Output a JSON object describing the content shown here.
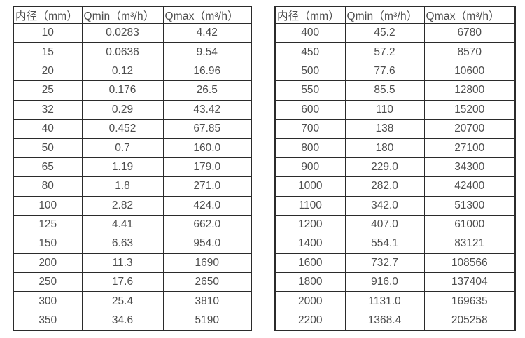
{
  "tables": [
    {
      "name": "small-diameter-flow-ranges",
      "headers": [
        "内径（mm）",
        "Qmin（m³/h）",
        "Qmax（m³/h）"
      ],
      "rows": [
        [
          "10",
          "0.0283",
          "4.42"
        ],
        [
          "15",
          "0.0636",
          "9.54"
        ],
        [
          "20",
          "0.12",
          "16.96"
        ],
        [
          "25",
          "0.176",
          "26.5"
        ],
        [
          "32",
          "0.29",
          "43.42"
        ],
        [
          "40",
          "0.452",
          "67.85"
        ],
        [
          "50",
          "0.7",
          "160.0"
        ],
        [
          "65",
          "1.19",
          "179.0"
        ],
        [
          "80",
          "1.8",
          "271.0"
        ],
        [
          "100",
          "2.82",
          "424.0"
        ],
        [
          "125",
          "4.41",
          "662.0"
        ],
        [
          "150",
          "6.63",
          "954.0"
        ],
        [
          "200",
          "11.3",
          "1690"
        ],
        [
          "250",
          "17.6",
          "2650"
        ],
        [
          "300",
          "25.4",
          "3810"
        ],
        [
          "350",
          "34.6",
          "5190"
        ]
      ]
    },
    {
      "name": "large-diameter-flow-ranges",
      "headers": [
        "内径（mm）",
        "Qmin（m³/h）",
        "Qmax（m³/h）"
      ],
      "rows": [
        [
          "400",
          "45.2",
          "6780"
        ],
        [
          "450",
          "57.2",
          "8570"
        ],
        [
          "500",
          "77.6",
          "10600"
        ],
        [
          "550",
          "85.5",
          "12800"
        ],
        [
          "600",
          "110",
          "15200"
        ],
        [
          "700",
          "138",
          "20700"
        ],
        [
          "800",
          "180",
          "27100"
        ],
        [
          "900",
          "229.0",
          "34300"
        ],
        [
          "1000",
          "282.0",
          "42400"
        ],
        [
          "1100",
          "342.0",
          "51300"
        ],
        [
          "1200",
          "407.0",
          "61000"
        ],
        [
          "1400",
          "554.1",
          "83121"
        ],
        [
          "1600",
          "732.7",
          "108566"
        ],
        [
          "1800",
          "916.0",
          "137404"
        ],
        [
          "2000",
          "1131.0",
          "169635"
        ],
        [
          "2200",
          "1368.4",
          "205258"
        ]
      ]
    }
  ],
  "colors": {
    "border": "#2b2b2b",
    "text": "#4d4d4d",
    "background": "#ffffff"
  }
}
